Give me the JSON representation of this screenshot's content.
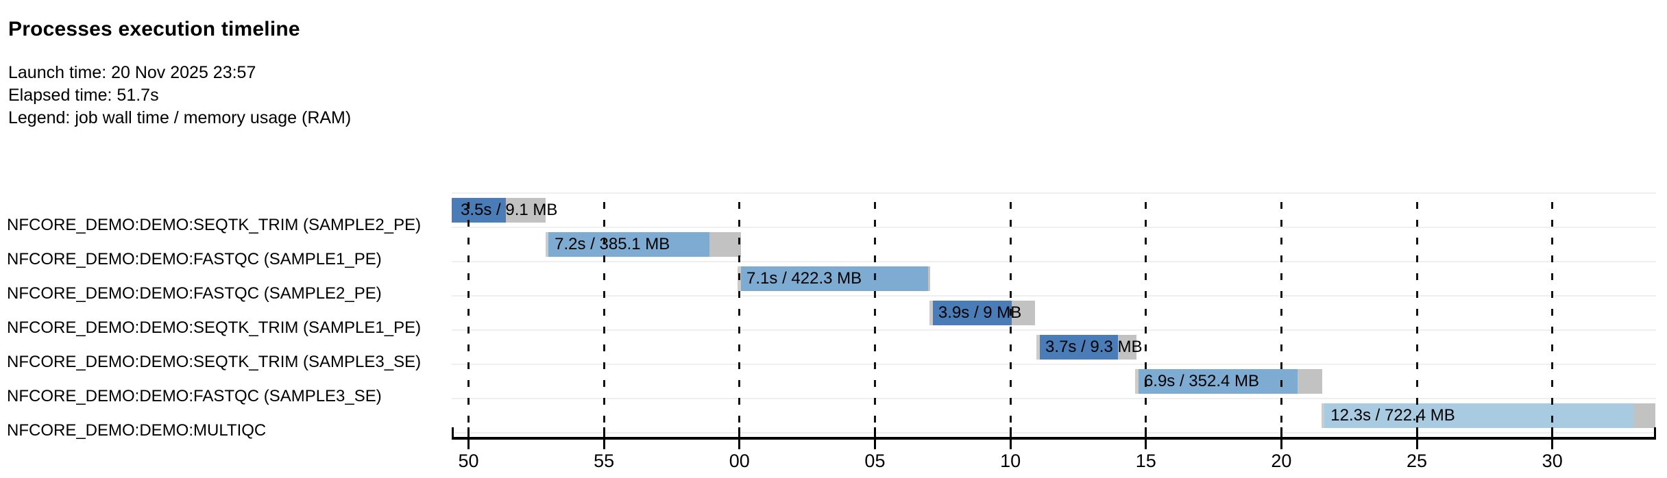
{
  "header": {
    "title": "Processes execution timeline",
    "launch_time": "Launch time: 20 Nov 2025 23:57",
    "elapsed_time": "Elapsed time: 51.7s",
    "legend": "Legend: job wall time / memory usage (RAM)"
  },
  "chart_data": {
    "type": "gantt-timeline",
    "time_unit": "seconds relative to chart start (23:57:49.4)",
    "axis": {
      "domain": [
        0,
        44.45
      ],
      "ticks": [
        {
          "t": 0.62,
          "label": "50"
        },
        {
          "t": 5.62,
          "label": "55"
        },
        {
          "t": 10.62,
          "label": "00"
        },
        {
          "t": 15.62,
          "label": "05"
        },
        {
          "t": 20.62,
          "label": "10"
        },
        {
          "t": 25.62,
          "label": "15"
        },
        {
          "t": 30.62,
          "label": "20"
        },
        {
          "t": 35.62,
          "label": "25"
        },
        {
          "t": 40.62,
          "label": "30"
        }
      ]
    },
    "colors": {
      "process_colors": {
        "SEQTK_TRIM": "#4a7cb8",
        "FASTQC": "#7dabd1",
        "MULTIQC": "#a9cbe2"
      },
      "wait_segment": "#cccccc",
      "overhead_segment": "#c2c2c2",
      "grid": "#111111",
      "separator": "#efefef",
      "axis": "#000000"
    },
    "tasks": [
      {
        "name": "NFCORE_DEMO:DEMO:SEQTK_TRIM (SAMPLE2_PE)",
        "process": "SEQTK_TRIM",
        "label": "3.5s / 9.1 MB",
        "start": 0.0,
        "run_start": 0.0,
        "run_end": 2.0,
        "end": 3.47
      },
      {
        "name": "NFCORE_DEMO:DEMO:FASTQC (SAMPLE1_PE)",
        "process": "FASTQC",
        "label": "7.2s / 385.1 MB",
        "start": 3.47,
        "run_start": 3.57,
        "run_end": 9.5,
        "end": 10.67
      },
      {
        "name": "NFCORE_DEMO:DEMO:FASTQC (SAMPLE2_PE)",
        "process": "FASTQC",
        "label": "7.1s / 422.3 MB",
        "start": 10.55,
        "run_start": 10.67,
        "run_end": 17.58,
        "end": 17.65
      },
      {
        "name": "NFCORE_DEMO:DEMO:SEQTK_TRIM (SAMPLE1_PE)",
        "process": "SEQTK_TRIM",
        "label": "3.9s / 9 MB",
        "start": 17.63,
        "run_start": 17.75,
        "run_end": 20.67,
        "end": 21.53
      },
      {
        "name": "NFCORE_DEMO:DEMO:SEQTK_TRIM (SAMPLE3_SE)",
        "process": "SEQTK_TRIM",
        "label": "3.7s / 9.3 MB",
        "start": 21.58,
        "run_start": 21.7,
        "run_end": 24.6,
        "end": 25.28
      },
      {
        "name": "NFCORE_DEMO:DEMO:FASTQC (SAMPLE3_SE)",
        "process": "FASTQC",
        "label": "6.9s / 352.4 MB",
        "start": 25.22,
        "run_start": 25.34,
        "run_end": 31.21,
        "end": 32.12
      },
      {
        "name": "NFCORE_DEMO:DEMO:MULTIQC",
        "process": "MULTIQC",
        "label": "12.3s / 722.4 MB",
        "start": 32.11,
        "run_start": 32.21,
        "run_end": 43.64,
        "end": 44.41
      }
    ]
  }
}
